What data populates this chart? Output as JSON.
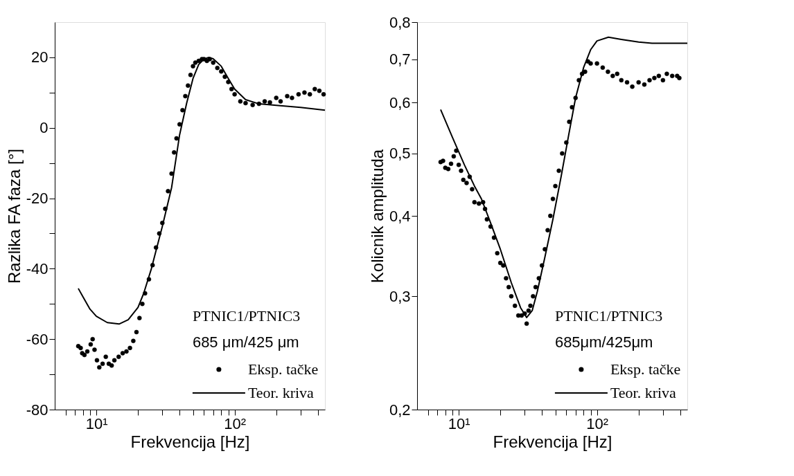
{
  "chart_data": [
    {
      "type": "line",
      "xlabel": "Frekvencija [Hz]",
      "ylabel": "Razlika FA faza [°]",
      "log": "x",
      "xlim": [
        5,
        450
      ],
      "xticks": [
        {
          "value": 6,
          "label": null
        },
        {
          "value": 7,
          "label": null
        },
        {
          "value": 8,
          "label": null
        },
        {
          "value": 9,
          "label": null
        },
        {
          "value": 10,
          "label": "10¹"
        },
        {
          "value": 20,
          "label": null
        },
        {
          "value": 30,
          "label": null
        },
        {
          "value": 40,
          "label": null
        },
        {
          "value": 50,
          "label": null
        },
        {
          "value": 60,
          "label": null
        },
        {
          "value": 70,
          "label": null
        },
        {
          "value": 80,
          "label": null
        },
        {
          "value": 90,
          "label": null
        },
        {
          "value": 100,
          "label": "10²"
        },
        {
          "value": 200,
          "label": null
        },
        {
          "value": 300,
          "label": null
        },
        {
          "value": 400,
          "label": null
        }
      ],
      "ylim": [
        -80,
        30
      ],
      "yticks": [
        -80,
        {
          "value": -70,
          "label": null
        },
        -60,
        {
          "value": -50,
          "label": null
        },
        -40,
        {
          "value": -30,
          "label": null
        },
        -20,
        {
          "value": -10,
          "label": null
        },
        0,
        {
          "value": 10,
          "label": null
        },
        20
      ],
      "grid": false,
      "legend": "bottom right",
      "annotations": [
        "PTNIC1/PTNIC3",
        "685 μm/425 μm"
      ],
      "series": [
        {
          "name": "Eksp. tačke",
          "type": "scatter",
          "marker": "circle",
          "color": "#000000",
          "x": [
            7.4,
            7.7,
            7.9,
            8.2,
            8.6,
            9.1,
            9.4,
            9.7,
            10.1,
            10.5,
            11.1,
            11.7,
            12.3,
            12.9,
            13.5,
            14.5,
            15.5,
            16.5,
            17.5,
            18.5,
            19.5,
            20.5,
            21.5,
            22.5,
            24,
            25.5,
            27,
            28.5,
            30,
            31.5,
            33,
            35,
            36.5,
            38,
            40,
            42,
            44,
            46,
            48,
            50,
            52,
            55,
            58,
            60,
            63,
            66,
            70,
            75,
            80,
            85,
            90,
            95,
            100,
            110,
            120,
            135,
            150,
            165,
            180,
            200,
            215,
            240,
            260,
            290,
            320,
            350,
            380,
            410,
            440
          ],
          "values": [
            -62,
            -62.5,
            -64,
            -64.5,
            -63.5,
            -61.5,
            -60,
            -63,
            -66,
            -68,
            -67,
            -65,
            -67,
            -67.5,
            -66,
            -65,
            -64,
            -63.5,
            -62.5,
            -60.5,
            -58,
            -54,
            -50,
            -47,
            -43,
            -39,
            -34,
            -30,
            -27,
            -23,
            -18,
            -13,
            -7,
            -3,
            1,
            5,
            9,
            12,
            15,
            17.5,
            18.5,
            19,
            19.5,
            19.5,
            19,
            19.5,
            18.5,
            17,
            16,
            14.5,
            13,
            11,
            9.5,
            7.5,
            7,
            6.5,
            6.8,
            7.5,
            7.2,
            8.5,
            7.5,
            9,
            8.5,
            9.5,
            10,
            9.5,
            11,
            10.5,
            9.5
          ]
        },
        {
          "name": "Teor. kriva",
          "type": "line",
          "line_style": "solid",
          "color": "#000000",
          "x": [
            7.4,
            8,
            9,
            10,
            12,
            14.6,
            17,
            20,
            22,
            25,
            30,
            35,
            40,
            45,
            50,
            55,
            60,
            65,
            70,
            80,
            90,
            100,
            120,
            150,
            200,
            300,
            450
          ],
          "values": [
            -45.6,
            -48,
            -51.5,
            -53.5,
            -55.3,
            -55.7,
            -54.5,
            -51,
            -47,
            -40,
            -28,
            -17,
            -2,
            7,
            14,
            18,
            19.5,
            20,
            19.6,
            17.5,
            14,
            11,
            8,
            6.8,
            6.4,
            5.8,
            5
          ]
        }
      ]
    },
    {
      "type": "line",
      "xlabel": "Frekvencija [Hz]",
      "ylabel": "Kolicnik amplituda",
      "log": "xy",
      "xlim": [
        5,
        450
      ],
      "xticks": [
        {
          "value": 6,
          "label": null
        },
        {
          "value": 7,
          "label": null
        },
        {
          "value": 8,
          "label": null
        },
        {
          "value": 9,
          "label": null
        },
        {
          "value": 10,
          "label": "10¹"
        },
        {
          "value": 20,
          "label": null
        },
        {
          "value": 30,
          "label": null
        },
        {
          "value": 40,
          "label": null
        },
        {
          "value": 50,
          "label": null
        },
        {
          "value": 60,
          "label": null
        },
        {
          "value": 70,
          "label": null
        },
        {
          "value": 80,
          "label": null
        },
        {
          "value": 90,
          "label": null
        },
        {
          "value": 100,
          "label": "10²"
        },
        {
          "value": 200,
          "label": null
        },
        {
          "value": 300,
          "label": null
        },
        {
          "value": 400,
          "label": null
        }
      ],
      "ylim": [
        0.2,
        0.8
      ],
      "yticks": [
        {
          "value": 0.2,
          "label": "0,2"
        },
        {
          "value": 0.3,
          "label": "0,3"
        },
        {
          "value": 0.4,
          "label": "0,4"
        },
        {
          "value": 0.5,
          "label": "0,5"
        },
        {
          "value": 0.6,
          "label": "0,6"
        },
        {
          "value": 0.7,
          "label": "0,7"
        },
        {
          "value": 0.8,
          "label": "0,8"
        }
      ],
      "grid": false,
      "legend": "bottom right",
      "annotations": [
        "PTNIC1/PTNIC3",
        "685μm/425μm"
      ],
      "series": [
        {
          "name": "Eksp. tačke",
          "type": "scatter",
          "marker": "circle",
          "color": "#000000",
          "x": [
            7.4,
            7.7,
            8.0,
            8.4,
            8.8,
            9.2,
            9.6,
            10,
            10.4,
            10.8,
            11.4,
            12,
            12.5,
            13,
            14,
            15,
            15.5,
            16,
            17,
            18,
            19,
            20,
            21,
            22,
            23,
            24,
            25.5,
            27,
            28.5,
            30,
            31,
            32,
            33,
            34.5,
            36,
            38,
            40,
            42,
            44,
            46,
            48,
            50,
            53,
            56,
            60,
            63,
            66,
            70,
            74,
            78,
            82,
            86,
            90,
            100,
            110,
            120,
            130,
            140,
            150,
            165,
            180,
            200,
            220,
            240,
            260,
            280,
            300,
            320,
            350,
            380,
            394
          ],
          "values": [
            0.485,
            0.487,
            0.475,
            0.473,
            0.482,
            0.495,
            0.505,
            0.48,
            0.47,
            0.455,
            0.45,
            0.46,
            0.44,
            0.42,
            0.418,
            0.42,
            0.41,
            0.395,
            0.385,
            0.37,
            0.35,
            0.338,
            0.335,
            0.32,
            0.31,
            0.3,
            0.29,
            0.28,
            0.28,
            0.282,
            0.272,
            0.285,
            0.29,
            0.3,
            0.31,
            0.32,
            0.335,
            0.355,
            0.38,
            0.4,
            0.425,
            0.445,
            0.47,
            0.5,
            0.52,
            0.56,
            0.59,
            0.61,
            0.65,
            0.665,
            0.67,
            0.695,
            0.69,
            0.69,
            0.68,
            0.67,
            0.66,
            0.665,
            0.65,
            0.645,
            0.635,
            0.645,
            0.64,
            0.65,
            0.655,
            0.66,
            0.65,
            0.665,
            0.66,
            0.66,
            0.655
          ]
        },
        {
          "name": "Teor. kriva",
          "type": "line",
          "line_style": "solid",
          "color": "#000000",
          "x": [
            7.4,
            9,
            11,
            13,
            14.6,
            17,
            20,
            24,
            28,
            31,
            34,
            37,
            42,
            48,
            55,
            62,
            70,
            80,
            90,
            100,
            121,
            150,
            200,
            250,
            450
          ],
          "values": [
            0.585,
            0.53,
            0.48,
            0.445,
            0.425,
            0.39,
            0.355,
            0.315,
            0.288,
            0.278,
            0.285,
            0.305,
            0.345,
            0.395,
            0.46,
            0.53,
            0.61,
            0.68,
            0.725,
            0.748,
            0.758,
            0.752,
            0.745,
            0.742,
            0.742
          ]
        }
      ]
    }
  ]
}
